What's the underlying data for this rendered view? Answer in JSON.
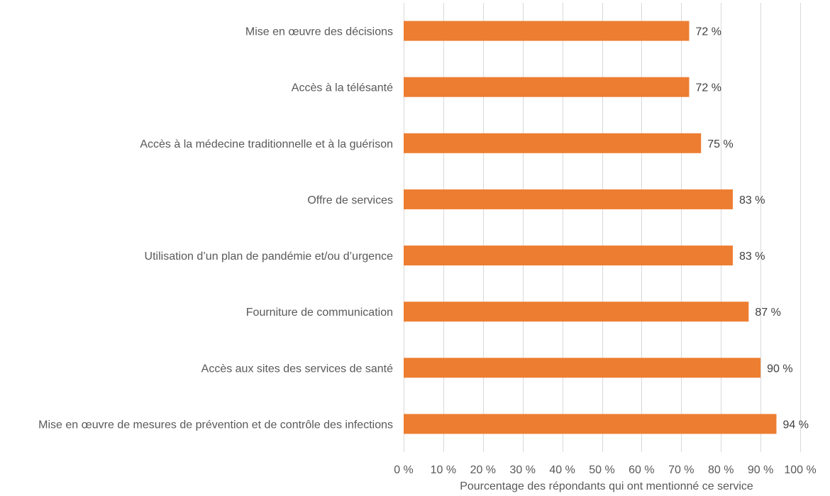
{
  "chart_data": {
    "type": "bar",
    "orientation": "horizontal",
    "title": "",
    "xlabel": "Pourcentage des répondants qui ont mentionné ce service",
    "ylabel": "",
    "xlim": [
      0,
      100
    ],
    "grid": true,
    "legend": "none",
    "bar_color": "#ED7D31",
    "x_ticks": [
      0,
      10,
      20,
      30,
      40,
      50,
      60,
      70,
      80,
      90,
      100
    ],
    "x_tick_labels": [
      "0 %",
      "10 %",
      "20 %",
      "30 %",
      "40 %",
      "50 %",
      "60 %",
      "70 %",
      "80 %",
      "90 %",
      "100 %"
    ],
    "categories": [
      "Mise en œuvre des décisions",
      "Accès à la télésanté",
      "Accès à la médecine traditionnelle et à la guérison",
      "Offre de services",
      "Utilisation d’un plan de pandémie et/ou d’urgence",
      "Fourniture de communication",
      "Accès aux sites des services de santé",
      "Mise en œuvre de mesures de prévention et de contrôle des infections"
    ],
    "values": [
      72,
      72,
      75,
      83,
      83,
      87,
      90,
      94
    ],
    "data_labels": [
      "72 %",
      "72 %",
      "75 %",
      "83 %",
      "83 %",
      "87 %",
      "90 %",
      "94 %"
    ]
  }
}
